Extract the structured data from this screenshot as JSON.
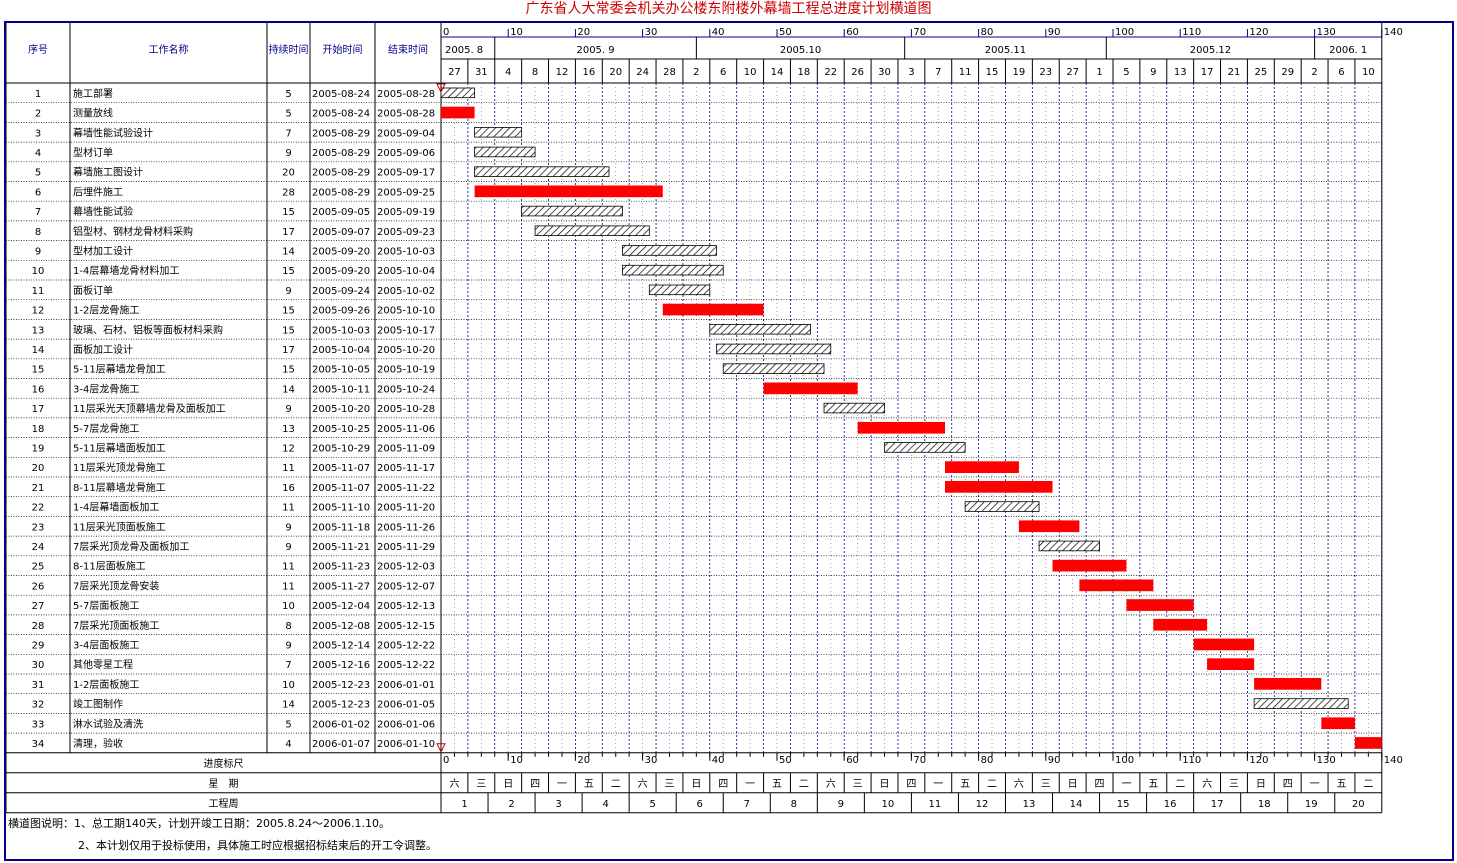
{
  "title": "广东省人大常委会机关办公楼东附楼外幕墙工程总进度计划横道图",
  "headers": {
    "seq": "序号",
    "name": "工作名称",
    "duration": "持续时间",
    "start": "开始时间",
    "end": "结束时间",
    "progress_scale": "进度标尺",
    "weekday": "星　期",
    "week_no": "工程周"
  },
  "colors": {
    "critical": "#ff0000",
    "normal_hatch": "#000000",
    "title": "#cc0000",
    "grid_blue": "#00008b"
  },
  "timeline": {
    "months": [
      {
        "label": "2005. 8",
        "day": 0
      },
      {
        "label": "2005. 9",
        "day": 8
      },
      {
        "label": "2005.10",
        "day": 38
      },
      {
        "label": "2005.11",
        "day": 69
      },
      {
        "label": "2005.12",
        "day": 99
      },
      {
        "label": "2006. 1",
        "day": 130
      }
    ],
    "day_labels": [
      "27",
      "31",
      "4",
      "8",
      "12",
      "16",
      "20",
      "24",
      "28",
      "2",
      "6",
      "10",
      "14",
      "18",
      "22",
      "26",
      "30",
      "3",
      "7",
      "11",
      "15",
      "19",
      "23",
      "27",
      "1",
      "5",
      "9",
      "13",
      "17",
      "21",
      "25",
      "29",
      "2",
      "6",
      "10"
    ],
    "scale_ticks": [
      "0",
      "10",
      "20",
      "30",
      "40",
      "50",
      "60",
      "70",
      "80",
      "90",
      "100",
      "110",
      "120",
      "130",
      "140"
    ],
    "weekdays": [
      "六",
      "三",
      "日",
      "四",
      "一",
      "五",
      "二",
      "六",
      "三",
      "日",
      "四",
      "一",
      "五",
      "二",
      "六",
      "三",
      "日",
      "四",
      "一",
      "五",
      "二",
      "六",
      "三",
      "日",
      "四",
      "一",
      "五",
      "二",
      "六",
      "三",
      "日",
      "四",
      "一",
      "五",
      "二"
    ],
    "week_numbers": [
      "1",
      "2",
      "3",
      "4",
      "5",
      "6",
      "7",
      "8",
      "9",
      "10",
      "11",
      "12",
      "13",
      "14",
      "15",
      "16",
      "17",
      "18",
      "19",
      "20"
    ]
  },
  "chart_data": {
    "type": "gantt",
    "title": "广东省人大常委会机关办公楼东附楼外幕墙工程总进度计划横道图",
    "x_unit": "day",
    "x_range": [
      0,
      140
    ],
    "project_start": "2005-08-24",
    "tasks": [
      {
        "id": "1",
        "name": "施工部署",
        "duration": 5,
        "start": "2005-08-24",
        "end": "2005-08-28",
        "critical": false
      },
      {
        "id": "2",
        "name": "测量放线",
        "duration": 5,
        "start": "2005-08-24",
        "end": "2005-08-28",
        "critical": true
      },
      {
        "id": "3",
        "name": "幕墙性能试验设计",
        "duration": 7,
        "start": "2005-08-29",
        "end": "2005-09-04",
        "critical": false
      },
      {
        "id": "4",
        "name": "型材订单",
        "duration": 9,
        "start": "2005-08-29",
        "end": "2005-09-06",
        "critical": false
      },
      {
        "id": "5",
        "name": "幕墙施工图设计",
        "duration": 20,
        "start": "2005-08-29",
        "end": "2005-09-17",
        "critical": false
      },
      {
        "id": "6",
        "name": "后埋件施工",
        "duration": 28,
        "start": "2005-08-29",
        "end": "2005-09-25",
        "critical": true
      },
      {
        "id": "7",
        "name": "幕墙性能试验",
        "duration": 15,
        "start": "2005-09-05",
        "end": "2005-09-19",
        "critical": false
      },
      {
        "id": "8",
        "name": "铝型材、钢材龙骨材料采购",
        "duration": 17,
        "start": "2005-09-07",
        "end": "2005-09-23",
        "critical": false
      },
      {
        "id": "9",
        "name": "型材加工设计",
        "duration": 14,
        "start": "2005-09-20",
        "end": "2005-10-03",
        "critical": false
      },
      {
        "id": "10",
        "name": "1-4层幕墙龙骨材料加工",
        "duration": 15,
        "start": "2005-09-20",
        "end": "2005-10-04",
        "critical": false
      },
      {
        "id": "11",
        "name": "面板订单",
        "duration": 9,
        "start": "2005-09-24",
        "end": "2005-10-02",
        "critical": false
      },
      {
        "id": "12",
        "name": "1-2层龙骨施工",
        "duration": 15,
        "start": "2005-09-26",
        "end": "2005-10-10",
        "critical": true
      },
      {
        "id": "13",
        "name": "玻璃、石材、铝板等面板材料采购",
        "duration": 15,
        "start": "2005-10-03",
        "end": "2005-10-17",
        "critical": false
      },
      {
        "id": "14",
        "name": "面板加工设计",
        "duration": 17,
        "start": "2005-10-04",
        "end": "2005-10-20",
        "critical": false
      },
      {
        "id": "15",
        "name": "5-11层幕墙龙骨加工",
        "duration": 15,
        "start": "2005-10-05",
        "end": "2005-10-19",
        "critical": false
      },
      {
        "id": "16",
        "name": "3-4层龙骨施工",
        "duration": 14,
        "start": "2005-10-11",
        "end": "2005-10-24",
        "critical": true
      },
      {
        "id": "17",
        "name": "11层采光天顶幕墙龙骨及面板加工",
        "duration": 9,
        "start": "2005-10-20",
        "end": "2005-10-28",
        "critical": false
      },
      {
        "id": "18",
        "name": "5-7层龙骨施工",
        "duration": 13,
        "start": "2005-10-25",
        "end": "2005-11-06",
        "critical": true
      },
      {
        "id": "19",
        "name": "5-11层幕墙面板加工",
        "duration": 12,
        "start": "2005-10-29",
        "end": "2005-11-09",
        "critical": false
      },
      {
        "id": "20",
        "name": "11层采光顶龙骨施工",
        "duration": 11,
        "start": "2005-11-07",
        "end": "2005-11-17",
        "critical": true
      },
      {
        "id": "21",
        "name": "8-11层幕墙龙骨施工",
        "duration": 16,
        "start": "2005-11-07",
        "end": "2005-11-22",
        "critical": true
      },
      {
        "id": "22",
        "name": "1-4层幕墙面板加工",
        "duration": 11,
        "start": "2005-11-10",
        "end": "2005-11-20",
        "critical": false
      },
      {
        "id": "23",
        "name": "11层采光顶面板施工",
        "duration": 9,
        "start": "2005-11-18",
        "end": "2005-11-26",
        "critical": true
      },
      {
        "id": "24",
        "name": "7层采光顶龙骨及面板加工",
        "duration": 9,
        "start": "2005-11-21",
        "end": "2005-11-29",
        "critical": false
      },
      {
        "id": "25",
        "name": "8-11层面板施工",
        "duration": 11,
        "start": "2005-11-23",
        "end": "2005-12-03",
        "critical": true
      },
      {
        "id": "26",
        "name": "7层采光顶龙骨安装",
        "duration": 11,
        "start": "2005-11-27",
        "end": "2005-12-07",
        "critical": true
      },
      {
        "id": "27",
        "name": "5-7层面板施工",
        "duration": 10,
        "start": "2005-12-04",
        "end": "2005-12-13",
        "critical": true
      },
      {
        "id": "28",
        "name": "7层采光顶面板施工",
        "duration": 8,
        "start": "2005-12-08",
        "end": "2005-12-15",
        "critical": true
      },
      {
        "id": "29",
        "name": "3-4层面板施工",
        "duration": 9,
        "start": "2005-12-14",
        "end": "2005-12-22",
        "critical": true
      },
      {
        "id": "30",
        "name": "其他零星工程",
        "duration": 7,
        "start": "2005-12-16",
        "end": "2005-12-22",
        "critical": true
      },
      {
        "id": "31",
        "name": "1-2层面板施工",
        "duration": 10,
        "start": "2005-12-23",
        "end": "2006-01-01",
        "critical": true
      },
      {
        "id": "32",
        "name": "竣工图制作",
        "duration": 14,
        "start": "2005-12-23",
        "end": "2006-01-05",
        "critical": false
      },
      {
        "id": "33",
        "name": "淋水试验及清洗",
        "duration": 5,
        "start": "2006-01-02",
        "end": "2006-01-06",
        "critical": true
      },
      {
        "id": "34",
        "name": "清理，验收",
        "duration": 4,
        "start": "2006-01-07",
        "end": "2006-01-10",
        "critical": true
      }
    ]
  },
  "notes": {
    "line1": "横道图说明：1、总工期140天，计划开竣工日期：2005.8.24～2006.1.10。",
    "line2": "2、本计划仅用于投标使用，具体施工时应根据招标结束后的开工令调整。"
  }
}
